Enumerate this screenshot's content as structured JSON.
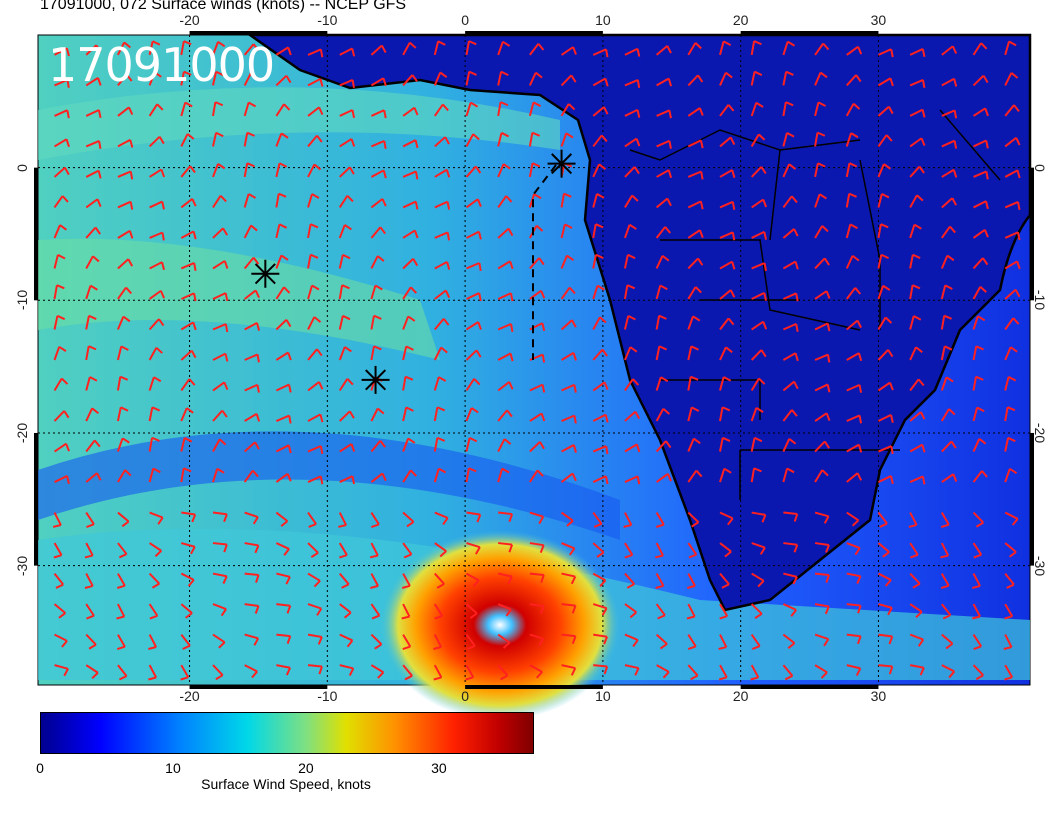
{
  "title": "17091000, 072 Surface winds (knots) -- NCEP GFS",
  "stamp": "17091000",
  "lon_labels": [
    "-20",
    "-10",
    "0",
    "10",
    "20",
    "30"
  ],
  "lon_values": [
    -20,
    -10,
    0,
    10,
    20,
    30
  ],
  "lat_labels": [
    "0",
    "-10",
    "-20",
    "-30"
  ],
  "lat_values": [
    0,
    -10,
    -20,
    -30
  ],
  "extent": {
    "lon_min": -31,
    "lon_max": 41,
    "lat_min": -39,
    "lat_max": 10
  },
  "markers": [
    {
      "lon": 7,
      "lat": 0.3
    },
    {
      "lon": -14.5,
      "lat": -8
    },
    {
      "lon": -6.5,
      "lat": -16
    }
  ],
  "colorbar": {
    "label": "Surface Wind Speed, knots",
    "ticks": [
      "0",
      "10",
      "20",
      "30"
    ],
    "tick_values": [
      0,
      10,
      20,
      30
    ],
    "max": 37
  },
  "colors": {
    "land": "#0a14b8",
    "ocean": "#30b8e0",
    "barb": "#ff2020",
    "coast": "#000000"
  }
}
